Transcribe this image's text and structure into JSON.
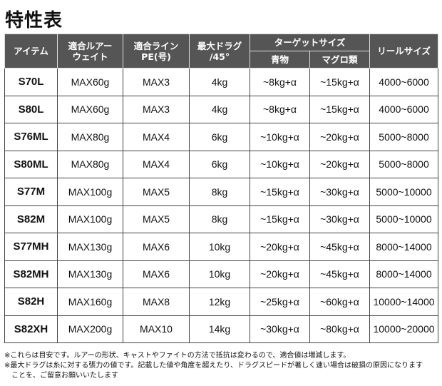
{
  "title": "特性表",
  "headers": {
    "item": "アイテム",
    "lure": [
      "適合ルアー",
      "ウェイト"
    ],
    "line": [
      "適合ライン",
      "PE(号)"
    ],
    "drag": [
      "最大ドラグ",
      "/45°"
    ],
    "target": "ターゲットサイズ",
    "aomono": "青物",
    "maguro": "マグロ類",
    "reel": "リールサイズ"
  },
  "rows": [
    [
      "S70L",
      "MAX60g",
      "MAX3",
      "4kg",
      "~8kg+α",
      "~15kg+α",
      "4000~6000"
    ],
    [
      "S80L",
      "MAX60g",
      "MAX3",
      "4kg",
      "~8kg+α",
      "~15kg+α",
      "4000~6000"
    ],
    [
      "S76ML",
      "MAX80g",
      "MAX4",
      "6kg",
      "~10kg+α",
      "~20kg+α",
      "5000~8000"
    ],
    [
      "S80ML",
      "MAX80g",
      "MAX4",
      "6kg",
      "~10kg+α",
      "~20kg+α",
      "5000~8000"
    ],
    [
      "S77M",
      "MAX100g",
      "MAX5",
      "8kg",
      "~15kg+α",
      "~30kg+α",
      "5000~10000"
    ],
    [
      "S82M",
      "MAX100g",
      "MAX5",
      "8kg",
      "~15kg+α",
      "~30kg+α",
      "5000~10000"
    ],
    [
      "S77MH",
      "MAX130g",
      "MAX6",
      "10kg",
      "~20kg+α",
      "~45kg+α",
      "8000~14000"
    ],
    [
      "S82MH",
      "MAX130g",
      "MAX6",
      "10kg",
      "~20kg+α",
      "~45kg+α",
      "8000~14000"
    ],
    [
      "S82H",
      "MAX160g",
      "MAX8",
      "12kg",
      "~25kg+α",
      "~60kg+α",
      "10000~14000"
    ],
    [
      "S82XH",
      "MAX200g",
      "MAX10",
      "14kg",
      "~30kg+α",
      "~80kg+α",
      "10000~20000"
    ]
  ],
  "notes": [
    "※これらは目安です。ルアーの形状、キャストやファイトの方法で抵抗は変わるので、適合値は増減します。",
    "※最大ドラグは糸に対する張力の値です。記載した値や角度を超えたり、ドラグスピードが著しく速い場合は破損の原因になります",
    "　ことを、ご留意お願いいたします"
  ]
}
